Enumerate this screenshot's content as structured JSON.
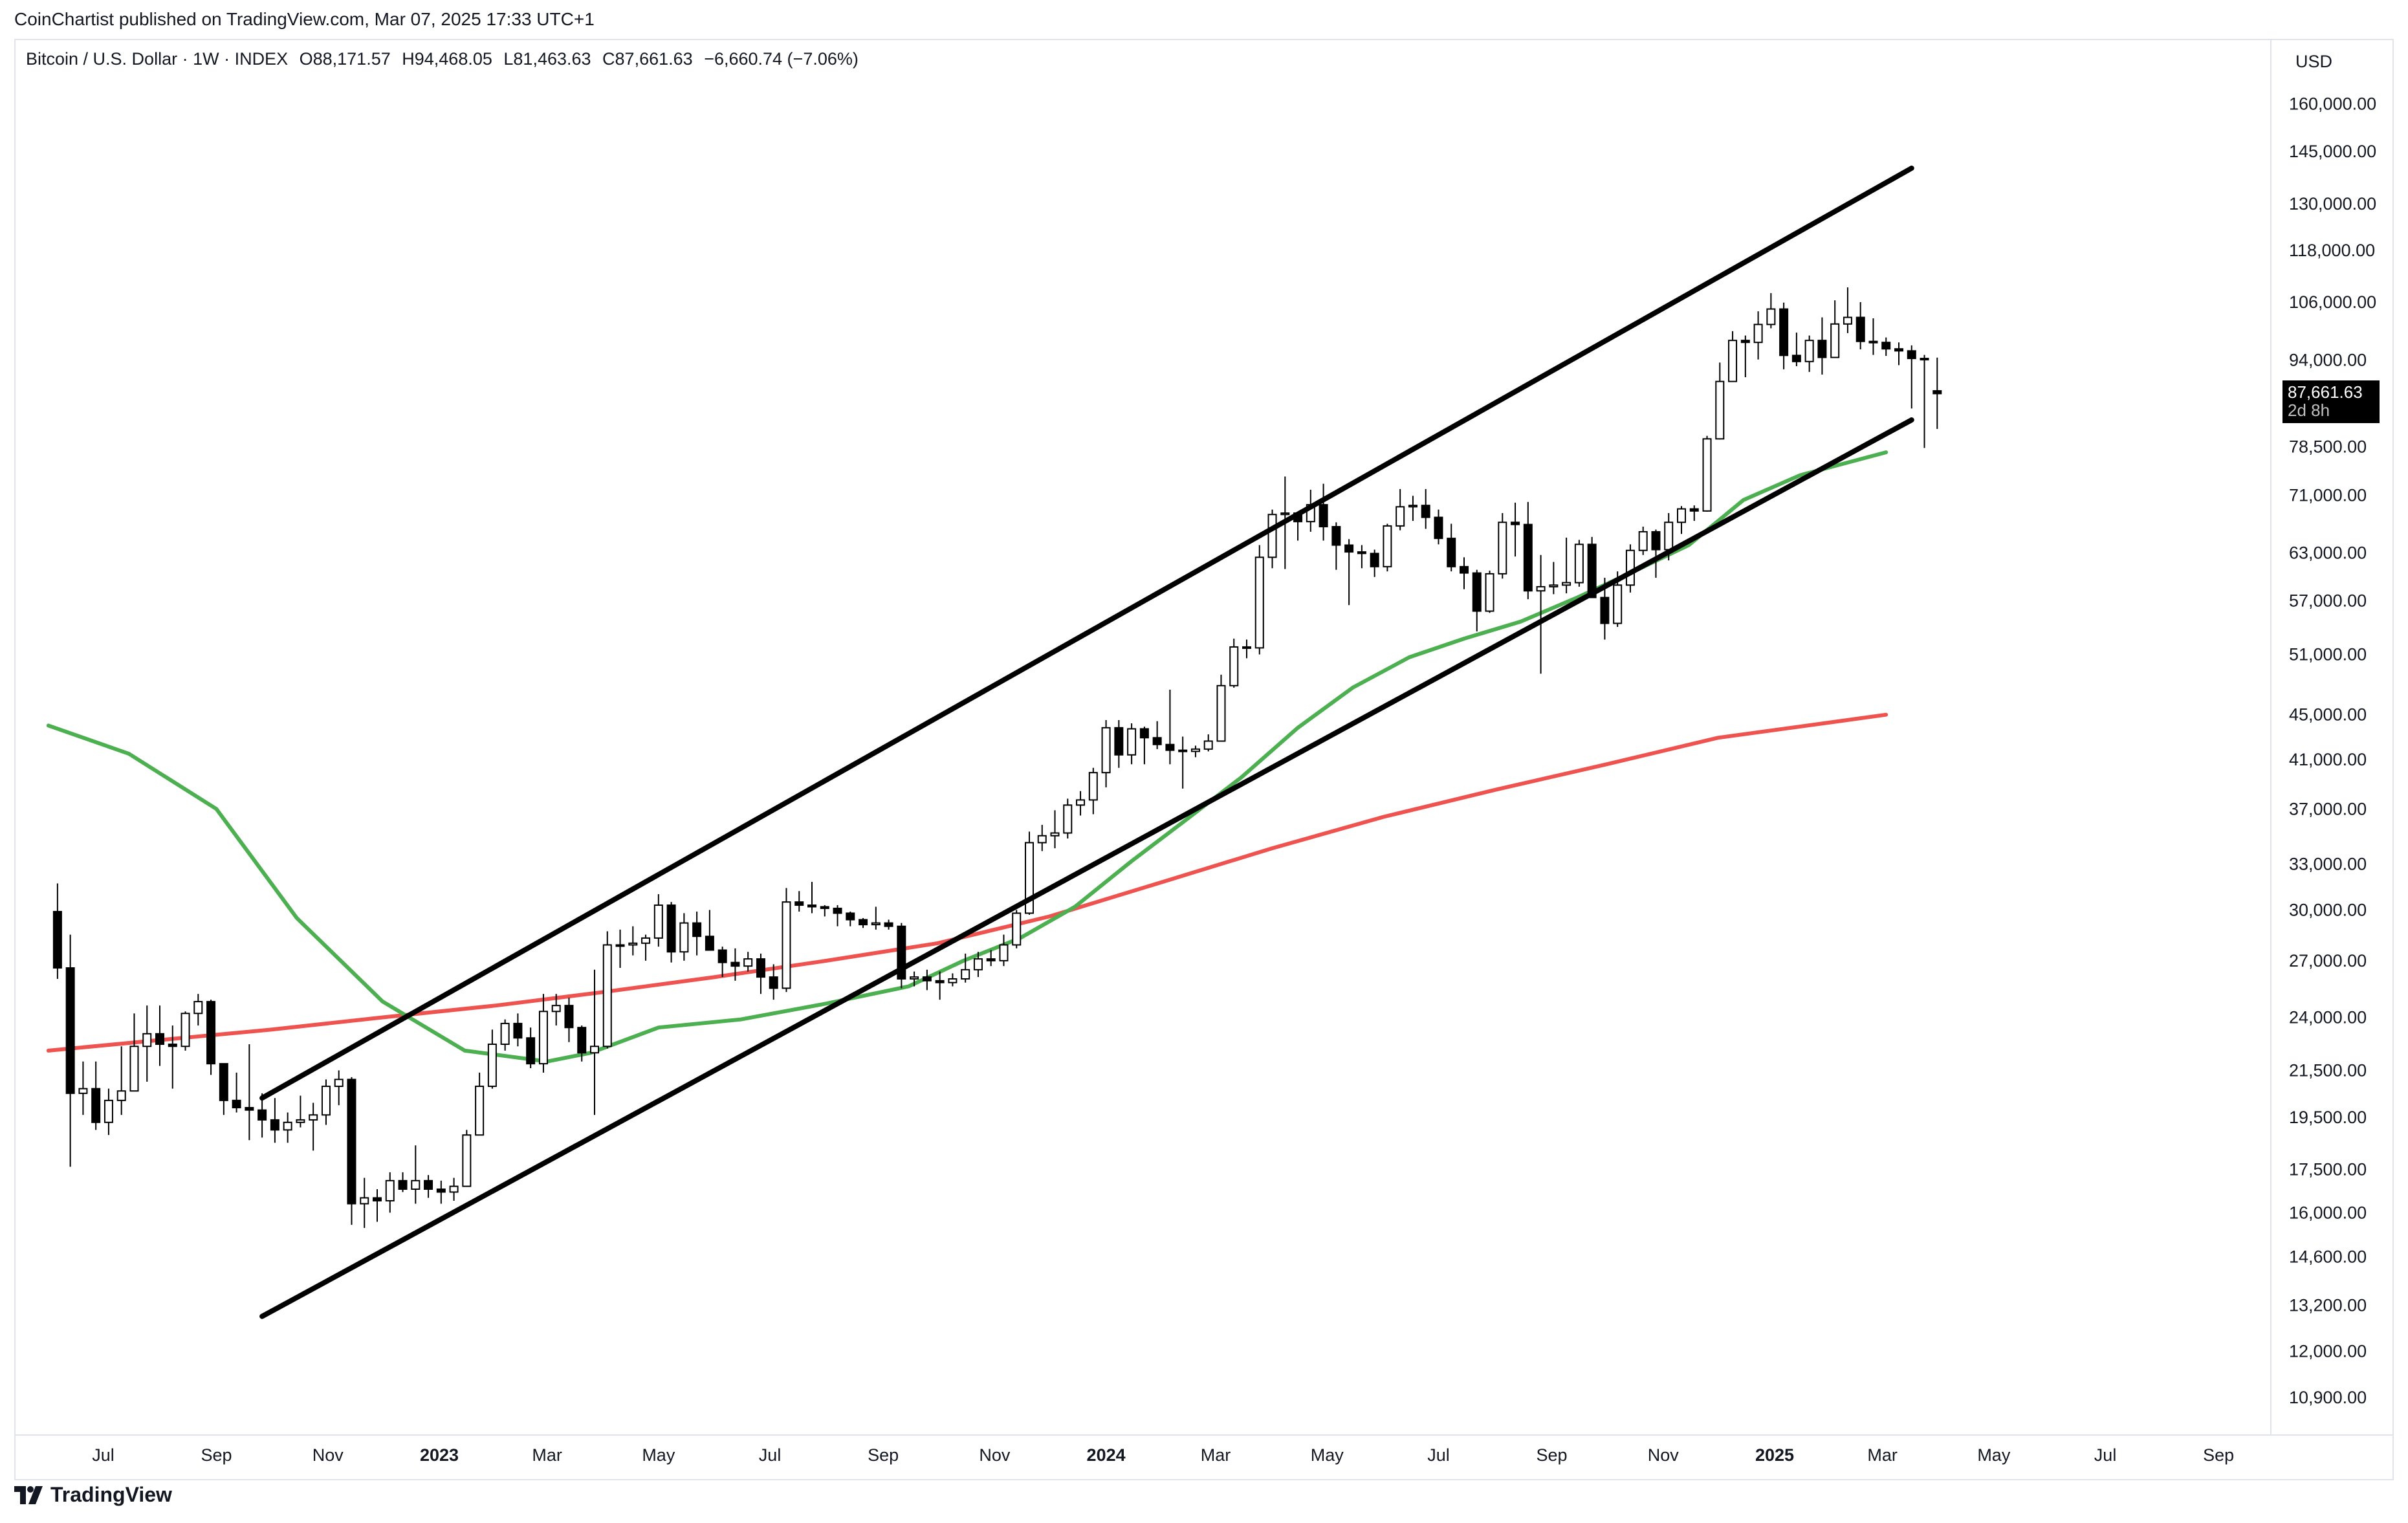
{
  "header": {
    "publisher": "CoinChartist published on TradingView.com, Mar 07, 2025 17:33 UTC+1"
  },
  "legend": {
    "symbol": "Bitcoin / U.S. Dollar · 1W · INDEX",
    "open": "O88,171.57",
    "high": "H94,468.05",
    "low": "L81,463.63",
    "close": "C87,661.63",
    "change": "−6,660.74 (−7.06%)"
  },
  "price_tag": {
    "price": "87,661.63",
    "countdown": "2d 8h"
  },
  "footer": {
    "brand": "TradingView"
  },
  "colors": {
    "ma_fast": "#4caf50",
    "ma_slow": "#ef5350",
    "candle": "#000000",
    "channel": "#000000"
  },
  "chart_data": {
    "type": "candlestick",
    "currency": "USD",
    "scale": "log",
    "ylim": [
      10000,
      180000
    ],
    "y_ticks": [
      160000,
      145000,
      130000,
      118000,
      106000,
      94000,
      78500,
      71000,
      63000,
      57000,
      51000,
      45000,
      41000,
      37000,
      33000,
      30000,
      27000,
      24000,
      21500,
      19500,
      17500,
      16000,
      14600,
      13200,
      12000,
      10900
    ],
    "y_tick_labels": [
      "160,000.00",
      "145,000.00",
      "130,000.00",
      "118,000.00",
      "106,000.00",
      "94,000.00",
      "78,500.00",
      "71,000.00",
      "63,000.00",
      "57,000.00",
      "51,000.00",
      "45,000.00",
      "41,000.00",
      "37,000.00",
      "33,000.00",
      "30,000.00",
      "27,000.00",
      "24,000.00",
      "21,500.00",
      "19,500.00",
      "17,500.00",
      "16,000.00",
      "14,600.00",
      "13,200.00",
      "12,000.00",
      "10,900.00"
    ],
    "x_range": [
      "2022-06-01",
      "2025-09-25"
    ],
    "x_ticks": [
      {
        "label": "Jul",
        "date": "2022-07-01",
        "bold": false
      },
      {
        "label": "Sep",
        "date": "2022-09-01",
        "bold": false
      },
      {
        "label": "Nov",
        "date": "2022-11-01",
        "bold": false
      },
      {
        "label": "2023",
        "date": "2023-01-01",
        "bold": true
      },
      {
        "label": "Mar",
        "date": "2023-03-01",
        "bold": false
      },
      {
        "label": "May",
        "date": "2023-05-01",
        "bold": false
      },
      {
        "label": "Jul",
        "date": "2023-07-01",
        "bold": false
      },
      {
        "label": "Sep",
        "date": "2023-09-01",
        "bold": false
      },
      {
        "label": "Nov",
        "date": "2023-11-01",
        "bold": false
      },
      {
        "label": "2024",
        "date": "2024-01-01",
        "bold": true
      },
      {
        "label": "Mar",
        "date": "2024-03-01",
        "bold": false
      },
      {
        "label": "May",
        "date": "2024-05-01",
        "bold": false
      },
      {
        "label": "Jul",
        "date": "2024-07-01",
        "bold": false
      },
      {
        "label": "Sep",
        "date": "2024-09-01",
        "bold": false
      },
      {
        "label": "Nov",
        "date": "2024-11-01",
        "bold": false
      },
      {
        "label": "2025",
        "date": "2025-01-01",
        "bold": true
      },
      {
        "label": "Mar",
        "date": "2025-03-01",
        "bold": false
      },
      {
        "label": "May",
        "date": "2025-05-01",
        "bold": false
      },
      {
        "label": "Jul",
        "date": "2025-07-01",
        "bold": false
      },
      {
        "label": "Sep",
        "date": "2025-09-01",
        "bold": false
      }
    ],
    "candle_start": "2022-06-06",
    "candle_interval_days": 7,
    "candles": [
      [
        29900,
        31700,
        26000,
        26600
      ],
      [
        26600,
        28500,
        17600,
        20500
      ],
      [
        20500,
        21900,
        19600,
        20700
      ],
      [
        20700,
        21900,
        19000,
        19300
      ],
      [
        19300,
        20700,
        18800,
        20200
      ],
      [
        20200,
        22600,
        19600,
        20600
      ],
      [
        20600,
        24200,
        20600,
        22600
      ],
      [
        22600,
        24600,
        21000,
        23200
      ],
      [
        23200,
        24600,
        21700,
        22700
      ],
      [
        22700,
        23600,
        20700,
        22600
      ],
      [
        22600,
        24300,
        22400,
        24200
      ],
      [
        24200,
        25200,
        23600,
        24800
      ],
      [
        24800,
        24900,
        21300,
        21800
      ],
      [
        21800,
        21800,
        19600,
        20200
      ],
      [
        20200,
        21400,
        19700,
        19900
      ],
      [
        19900,
        22700,
        18600,
        19800
      ],
      [
        19800,
        20500,
        18700,
        19400
      ],
      [
        19400,
        20300,
        18500,
        19000
      ],
      [
        19000,
        19700,
        18500,
        19300
      ],
      [
        19300,
        20400,
        19100,
        19400
      ],
      [
        19400,
        20100,
        18200,
        19600
      ],
      [
        19600,
        21100,
        19200,
        20800
      ],
      [
        20800,
        21500,
        20000,
        21100
      ],
      [
        21100,
        21200,
        15600,
        16300
      ],
      [
        16300,
        17200,
        15500,
        16500
      ],
      [
        16500,
        16800,
        15700,
        16400
      ],
      [
        16400,
        17400,
        16000,
        17100
      ],
      [
        17100,
        17400,
        16700,
        16800
      ],
      [
        16800,
        18400,
        16300,
        17100
      ],
      [
        17100,
        17300,
        16500,
        16800
      ],
      [
        16800,
        17100,
        16300,
        16700
      ],
      [
        16700,
        17200,
        16400,
        16900
      ],
      [
        16900,
        19000,
        16900,
        18800
      ],
      [
        18800,
        21400,
        18800,
        20800
      ],
      [
        20800,
        23400,
        20700,
        22700
      ],
      [
        22700,
        23900,
        22400,
        23700
      ],
      [
        23700,
        24200,
        22600,
        23000
      ],
      [
        23000,
        23500,
        21600,
        21800
      ],
      [
        21800,
        25200,
        21400,
        24300
      ],
      [
        24300,
        25200,
        23600,
        24600
      ],
      [
        24600,
        25000,
        22800,
        23500
      ],
      [
        23500,
        23600,
        21900,
        22300
      ],
      [
        22300,
        26500,
        19600,
        22600
      ],
      [
        22600,
        28700,
        22500,
        27900
      ],
      [
        27900,
        28800,
        26600,
        27900
      ],
      [
        27900,
        29000,
        27300,
        28000
      ],
      [
        28000,
        28500,
        27000,
        28300
      ],
      [
        28300,
        31000,
        27800,
        30300
      ],
      [
        30300,
        30500,
        26900,
        27500
      ],
      [
        27500,
        29800,
        27000,
        29200
      ],
      [
        29200,
        29900,
        27300,
        28400
      ],
      [
        28400,
        30000,
        27600,
        27600
      ],
      [
        27600,
        27800,
        26100,
        26900
      ],
      [
        26900,
        27700,
        25900,
        26700
      ],
      [
        26700,
        27500,
        26400,
        27100
      ],
      [
        27100,
        27400,
        25200,
        26100
      ],
      [
        26100,
        26800,
        24900,
        25500
      ],
      [
        25500,
        31400,
        25300,
        30500
      ],
      [
        30500,
        31200,
        29900,
        30300
      ],
      [
        30300,
        31800,
        29800,
        30200
      ],
      [
        30200,
        30300,
        29600,
        30100
      ],
      [
        30100,
        30300,
        29000,
        29800
      ],
      [
        29800,
        29900,
        29000,
        29400
      ],
      [
        29400,
        29500,
        28900,
        29100
      ],
      [
        29100,
        30200,
        28800,
        29200
      ],
      [
        29200,
        29400,
        28800,
        29000
      ],
      [
        29000,
        29200,
        25500,
        26000
      ],
      [
        26000,
        26400,
        25600,
        26100
      ],
      [
        26100,
        26500,
        25400,
        25900
      ],
      [
        25900,
        26400,
        24900,
        25800
      ],
      [
        25800,
        26300,
        25600,
        26000
      ],
      [
        26000,
        27400,
        25800,
        26500
      ],
      [
        26500,
        27500,
        26100,
        27100
      ],
      [
        27100,
        27600,
        26700,
        27000
      ],
      [
        27000,
        28500,
        26700,
        27900
      ],
      [
        27900,
        30000,
        27700,
        29800
      ],
      [
        29800,
        35300,
        29700,
        34500
      ],
      [
        34500,
        35800,
        33900,
        35000
      ],
      [
        35000,
        36900,
        34100,
        35200
      ],
      [
        35200,
        37800,
        34800,
        37300
      ],
      [
        37300,
        38400,
        36500,
        37700
      ],
      [
        37700,
        40300,
        36600,
        39900
      ],
      [
        39900,
        44500,
        38700,
        43800
      ],
      [
        43800,
        44500,
        40300,
        41400
      ],
      [
        41400,
        44200,
        40600,
        43700
      ],
      [
        43700,
        43900,
        40600,
        42900
      ],
      [
        42900,
        44400,
        41900,
        42300
      ],
      [
        42300,
        47400,
        40600,
        41800
      ],
      [
        41800,
        43000,
        38600,
        41700
      ],
      [
        41700,
        42200,
        41200,
        41900
      ],
      [
        41900,
        43200,
        41700,
        42600
      ],
      [
        42600,
        48900,
        42600,
        47800
      ],
      [
        47800,
        52700,
        47600,
        51800
      ],
      [
        51800,
        52600,
        50600,
        51700
      ],
      [
        51700,
        64000,
        51000,
        62400
      ],
      [
        62400,
        68900,
        61000,
        68200
      ],
      [
        68200,
        73800,
        60900,
        68400
      ],
      [
        68400,
        68500,
        64600,
        67200
      ],
      [
        67200,
        71800,
        65800,
        69600
      ],
      [
        69600,
        72700,
        64600,
        66500
      ],
      [
        66500,
        67100,
        60800,
        64000
      ],
      [
        64000,
        64800,
        56500,
        63100
      ],
      [
        63100,
        64000,
        61000,
        62900
      ],
      [
        62900,
        63400,
        59900,
        61200
      ],
      [
        61200,
        66900,
        60600,
        66600
      ],
      [
        66600,
        71900,
        66000,
        69300
      ],
      [
        69300,
        70900,
        67300,
        69500
      ],
      [
        69500,
        71900,
        66200,
        67800
      ],
      [
        67800,
        68900,
        64100,
        64900
      ],
      [
        64900,
        66900,
        60600,
        61200
      ],
      [
        61200,
        62400,
        58400,
        60400
      ],
      [
        60400,
        60800,
        53500,
        55800
      ],
      [
        55800,
        60700,
        55600,
        60300
      ],
      [
        60300,
        68400,
        59700,
        67100
      ],
      [
        67100,
        69900,
        62500,
        66800
      ],
      [
        66800,
        70000,
        57200,
        58200
      ],
      [
        58200,
        62700,
        49000,
        58700
      ],
      [
        58700,
        61800,
        57800,
        58900
      ],
      [
        58900,
        65000,
        57900,
        59200
      ],
      [
        59200,
        64700,
        58700,
        64100
      ],
      [
        64100,
        65100,
        57700,
        57400
      ],
      [
        57400,
        59800,
        52600,
        54400
      ],
      [
        54400,
        60600,
        54000,
        58900
      ],
      [
        58900,
        64100,
        58000,
        63300
      ],
      [
        63300,
        66500,
        62700,
        65800
      ],
      [
        65800,
        66100,
        59800,
        63400
      ],
      [
        63400,
        68400,
        62000,
        67100
      ],
      [
        67100,
        69400,
        65500,
        69000
      ],
      [
        69000,
        69500,
        67300,
        68700
      ],
      [
        68700,
        80300,
        68600,
        79800
      ],
      [
        79800,
        93500,
        79700,
        89900
      ],
      [
        89900,
        99800,
        89800,
        97900
      ],
      [
        97900,
        98900,
        90700,
        97500
      ],
      [
        97500,
        104000,
        94100,
        101200
      ],
      [
        101200,
        108000,
        100400,
        104500
      ],
      [
        104500,
        105900,
        92200,
        94900
      ],
      [
        94900,
        99500,
        92800,
        93700
      ],
      [
        93700,
        98900,
        91700,
        97900
      ],
      [
        97900,
        102700,
        91200,
        94500
      ],
      [
        94500,
        106400,
        94500,
        101300
      ],
      [
        101300,
        109300,
        99400,
        102700
      ],
      [
        102700,
        106000,
        96100,
        97700
      ],
      [
        97700,
        102500,
        95000,
        97500
      ],
      [
        97500,
        98500,
        94800,
        96200
      ],
      [
        96200,
        97500,
        93000,
        95800
      ],
      [
        95800,
        96900,
        85000,
        94300
      ],
      [
        94300,
        95000,
        78300,
        94300
      ],
      [
        88171.57,
        94468.05,
        81463.63,
        87661.63
      ]
    ],
    "channel_upper": [
      [
        "2022-09-26",
        20300
      ],
      [
        "2025-03-17",
        140000
      ]
    ],
    "channel_lower": [
      [
        "2022-09-26",
        12900
      ],
      [
        "2025-03-17",
        83000
      ]
    ],
    "ma_fast": [
      [
        "2022-06-01",
        44000
      ],
      [
        "2022-07-15",
        41500
      ],
      [
        "2022-09-01",
        37000
      ],
      [
        "2022-10-15",
        29500
      ],
      [
        "2022-12-01",
        24800
      ],
      [
        "2023-01-15",
        22400
      ],
      [
        "2023-03-01",
        21900
      ],
      [
        "2023-03-25",
        22300
      ],
      [
        "2023-05-01",
        23500
      ],
      [
        "2023-06-15",
        23900
      ],
      [
        "2023-08-01",
        24700
      ],
      [
        "2023-09-15",
        25600
      ],
      [
        "2023-10-15",
        27000
      ],
      [
        "2023-11-15",
        28300
      ],
      [
        "2023-12-15",
        30200
      ],
      [
        "2024-01-15",
        33200
      ],
      [
        "2024-02-15",
        36300
      ],
      [
        "2024-03-15",
        39500
      ],
      [
        "2024-04-15",
        43800
      ],
      [
        "2024-05-15",
        47600
      ],
      [
        "2024-06-15",
        50700
      ],
      [
        "2024-07-15",
        52700
      ],
      [
        "2024-08-15",
        54600
      ],
      [
        "2024-09-15",
        57400
      ],
      [
        "2024-10-15",
        60500
      ],
      [
        "2024-11-15",
        64000
      ],
      [
        "2024-12-15",
        70300
      ],
      [
        "2025-01-15",
        74000
      ],
      [
        "2025-03-03",
        77600
      ]
    ],
    "ma_slow": [
      [
        "2022-06-01",
        22400
      ],
      [
        "2022-08-01",
        22900
      ],
      [
        "2022-10-01",
        23400
      ],
      [
        "2022-12-01",
        24000
      ],
      [
        "2023-02-01",
        24600
      ],
      [
        "2023-04-01",
        25300
      ],
      [
        "2023-06-01",
        26100
      ],
      [
        "2023-08-01",
        27000
      ],
      [
        "2023-10-01",
        28000
      ],
      [
        "2023-12-01",
        29600
      ],
      [
        "2024-02-01",
        31800
      ],
      [
        "2024-04-01",
        34100
      ],
      [
        "2024-06-01",
        36400
      ],
      [
        "2024-08-01",
        38500
      ],
      [
        "2024-10-01",
        40600
      ],
      [
        "2024-12-01",
        42900
      ],
      [
        "2025-02-01",
        44300
      ],
      [
        "2025-03-03",
        45000
      ]
    ]
  }
}
